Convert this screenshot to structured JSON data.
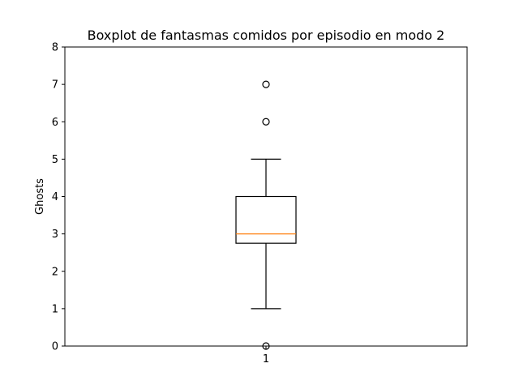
{
  "chart_data": {
    "type": "boxplot",
    "title": "Boxplot de fantasmas comidos por episodio en modo 2",
    "xlabel": "",
    "ylabel": "Ghosts",
    "ylim": [
      0,
      8
    ],
    "yticks": [
      "0",
      "1",
      "2",
      "3",
      "4",
      "5",
      "6",
      "7",
      "8"
    ],
    "categories": [
      "1"
    ],
    "boxes": [
      {
        "category": "1",
        "whisker_low": 1,
        "q1": 2.75,
        "median": 3,
        "q3": 4,
        "whisker_high": 5,
        "outliers": [
          0,
          6,
          7
        ]
      }
    ],
    "grid": false,
    "colors": {
      "median": "#ff7f0e",
      "box": "#000000",
      "axes": "#000000",
      "background": "#ffffff"
    }
  }
}
